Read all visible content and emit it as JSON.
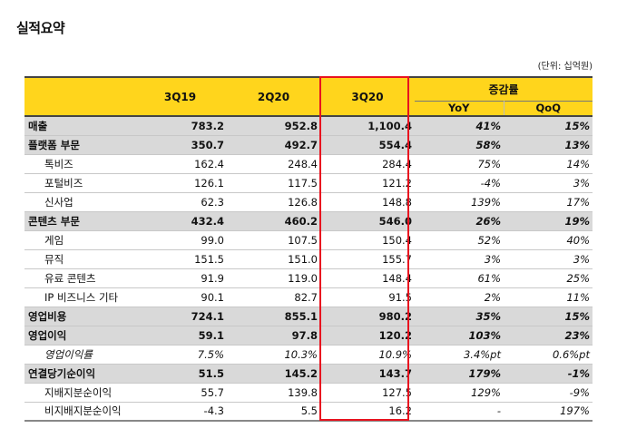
{
  "title": "실적요약",
  "unit": "(단위: 십억원)",
  "header": {
    "col_1": "3Q19",
    "col_2": "2Q20",
    "col_3": "3Q20",
    "change": "증감률",
    "yoy": "YoY",
    "qoq": "QoQ"
  },
  "rows": [
    {
      "label": "매출",
      "v1": "783.2",
      "v2": "952.8",
      "v3": "1,100.4",
      "yoy": "41%",
      "qoq": "15%"
    },
    {
      "label": "플랫폼 부문",
      "v1": "350.7",
      "v2": "492.7",
      "v3": "554.4",
      "yoy": "58%",
      "qoq": "13%"
    },
    {
      "label": "톡비즈",
      "v1": "162.4",
      "v2": "248.4",
      "v3": "284.4",
      "yoy": "75%",
      "qoq": "14%"
    },
    {
      "label": "포털비즈",
      "v1": "126.1",
      "v2": "117.5",
      "v3": "121.2",
      "yoy": "-4%",
      "qoq": "3%"
    },
    {
      "label": "신사업",
      "v1": "62.3",
      "v2": "126.8",
      "v3": "148.8",
      "yoy": "139%",
      "qoq": "17%"
    },
    {
      "label": "콘텐츠 부문",
      "v1": "432.4",
      "v2": "460.2",
      "v3": "546.0",
      "yoy": "26%",
      "qoq": "19%"
    },
    {
      "label": "게임",
      "v1": "99.0",
      "v2": "107.5",
      "v3": "150.4",
      "yoy": "52%",
      "qoq": "40%"
    },
    {
      "label": "뮤직",
      "v1": "151.5",
      "v2": "151.0",
      "v3": "155.7",
      "yoy": "3%",
      "qoq": "3%"
    },
    {
      "label": "유료 콘텐츠",
      "v1": "91.9",
      "v2": "119.0",
      "v3": "148.4",
      "yoy": "61%",
      "qoq": "25%"
    },
    {
      "label": "IP 비즈니스 기타",
      "v1": "90.1",
      "v2": "82.7",
      "v3": "91.5",
      "yoy": "2%",
      "qoq": "11%"
    },
    {
      "label": "영업비용",
      "v1": "724.1",
      "v2": "855.1",
      "v3": "980.2",
      "yoy": "35%",
      "qoq": "15%"
    },
    {
      "label": "영업이익",
      "v1": "59.1",
      "v2": "97.8",
      "v3": "120.2",
      "yoy": "103%",
      "qoq": "23%"
    },
    {
      "label": "영업이익률",
      "v1": "7.5%",
      "v2": "10.3%",
      "v3": "10.9%",
      "yoy": "3.4%pt",
      "qoq": "0.6%pt"
    },
    {
      "label": "연결당기순이익",
      "v1": "51.5",
      "v2": "145.2",
      "v3": "143.7",
      "yoy": "179%",
      "qoq": "-1%"
    },
    {
      "label": "지배지분순이익",
      "v1": "55.7",
      "v2": "139.8",
      "v3": "127.5",
      "yoy": "129%",
      "qoq": "-9%"
    },
    {
      "label": "비지배지분순이익",
      "v1": "-4.3",
      "v2": "5.5",
      "v3": "16.2",
      "yoy": "-",
      "qoq": "197%"
    }
  ]
}
